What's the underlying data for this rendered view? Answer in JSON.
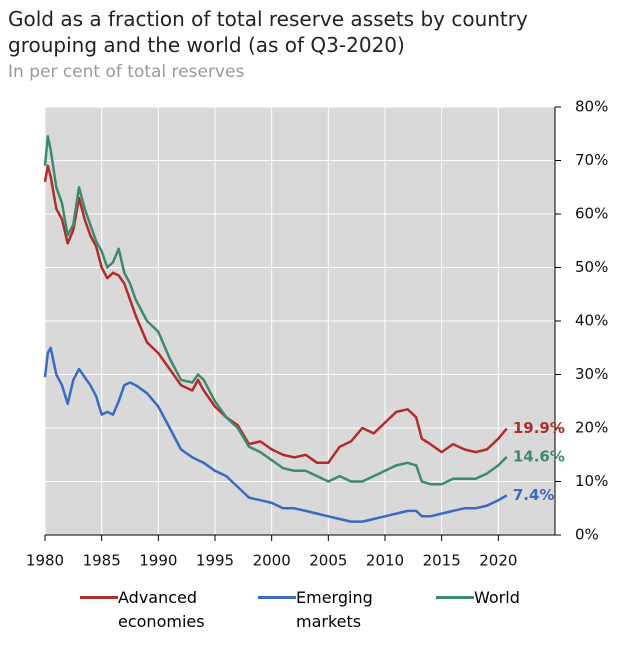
{
  "chart_data": {
    "type": "line",
    "title": "Gold as a fraction of total reserve assets by country grouping and the world (as of Q3-2020)",
    "subtitle": "In per cent of total reserves",
    "x": [
      1980,
      1980.25,
      1980.5,
      1981,
      1981.5,
      1982,
      1982.5,
      1983,
      1983.5,
      1984,
      1984.5,
      1985,
      1985.5,
      1986,
      1986.5,
      1987,
      1987.5,
      1988,
      1989,
      1990,
      1991,
      1992,
      1993,
      1993.5,
      1994,
      1995,
      1996,
      1997,
      1998,
      1999,
      2000,
      2001,
      2002,
      2003,
      2004,
      2005,
      2006,
      2007,
      2008,
      2009,
      2010,
      2011,
      2012,
      2012.75,
      2013.25,
      2014,
      2015,
      2016,
      2017,
      2018,
      2019,
      2020,
      2020.75
    ],
    "series": [
      {
        "name": "Advanced economies",
        "color": "#b22c2c",
        "end_label": "19.9%",
        "values": [
          66,
          69,
          67,
          61,
          59,
          54.5,
          57,
          63,
          59,
          56,
          54,
          50,
          48,
          49,
          48.5,
          47,
          44,
          41,
          36,
          34,
          31,
          28,
          27,
          29,
          27,
          24,
          22,
          20.5,
          17,
          17.5,
          16,
          15,
          14.5,
          15,
          13.5,
          13.5,
          16.5,
          17.5,
          20,
          19,
          21,
          23,
          23.5,
          22,
          18,
          17,
          15.5,
          17,
          16,
          15.5,
          16,
          18,
          19.9
        ]
      },
      {
        "name": "Emerging markets",
        "color": "#3a6bbf",
        "end_label": "7.4%",
        "values": [
          29.5,
          34,
          35,
          30,
          28,
          24.5,
          29,
          31,
          29.5,
          28,
          26,
          22.5,
          23,
          22.5,
          25,
          28,
          28.5,
          28,
          26.5,
          24,
          20,
          16,
          14.5,
          14,
          13.5,
          12,
          11,
          9,
          7,
          6.5,
          6,
          5,
          5,
          4.5,
          4,
          3.5,
          3,
          2.5,
          2.5,
          3,
          3.5,
          4,
          4.5,
          4.5,
          3.5,
          3.5,
          4,
          4.5,
          5,
          5,
          5.5,
          6.5,
          7.4
        ]
      },
      {
        "name": "World",
        "color": "#3f8a6b",
        "end_label": "14.6%",
        "values": [
          69,
          74.5,
          72,
          65,
          62,
          56,
          58,
          65,
          61,
          58,
          55,
          53,
          50,
          51,
          53.5,
          49,
          47,
          44,
          40,
          38,
          33,
          29,
          28.5,
          30,
          29,
          25,
          22,
          20,
          16.5,
          15.5,
          14,
          12.5,
          12,
          12,
          11,
          10,
          11,
          10,
          10,
          11,
          12,
          13,
          13.5,
          13,
          10,
          9.5,
          9.5,
          10.5,
          10.5,
          10.5,
          11.5,
          13,
          14.6
        ]
      }
    ],
    "xlim": [
      1980,
      2025
    ],
    "xticks": [
      1980,
      1985,
      1990,
      1995,
      2000,
      2005,
      2010,
      2015,
      2020
    ],
    "ylim": [
      0,
      80
    ],
    "yticks": [
      {
        "value": 0,
        "label": "0%"
      },
      {
        "value": 10,
        "label": "10%"
      },
      {
        "value": 20,
        "label": "20%"
      },
      {
        "value": 30,
        "label": "30%"
      },
      {
        "value": 40,
        "label": "40%"
      },
      {
        "value": 50,
        "label": "50%"
      },
      {
        "value": 60,
        "label": "60%"
      },
      {
        "value": 70,
        "label": "70%"
      },
      {
        "value": 80,
        "label": "80%"
      }
    ],
    "grid": true
  }
}
